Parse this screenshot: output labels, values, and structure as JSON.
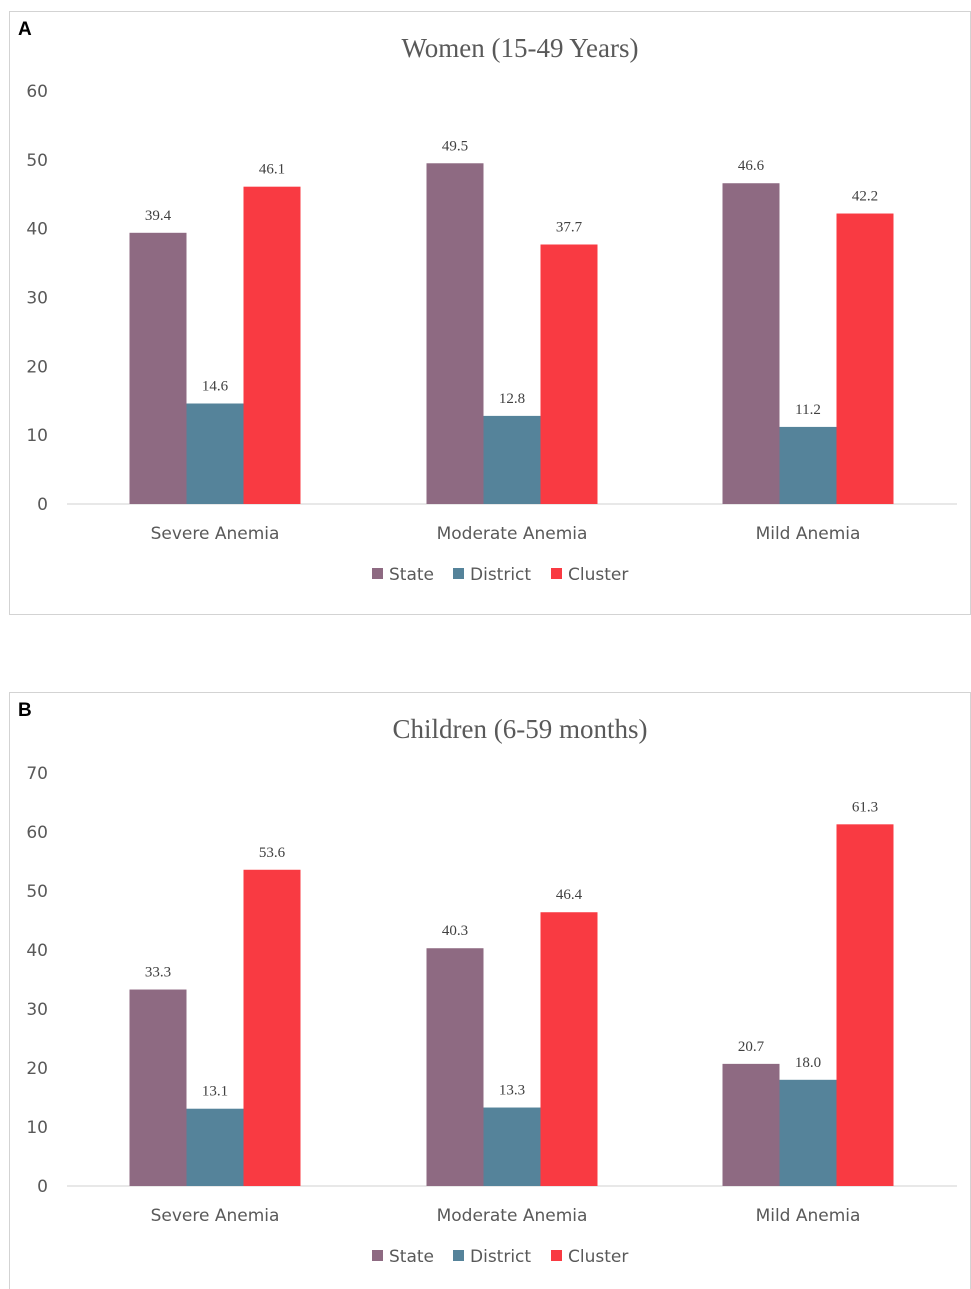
{
  "chart_data": [
    {
      "panel": "A",
      "type": "bar",
      "title": "Women (15-49 Years)",
      "categories": [
        "Severe Anemia",
        "Moderate Anemia",
        "Mild Anemia"
      ],
      "series": [
        {
          "name": "State",
          "values": [
            39.4,
            49.5,
            46.6
          ],
          "labels": [
            "39.4",
            "49.5",
            "46.6"
          ],
          "color": "#8e6a82"
        },
        {
          "name": "District",
          "values": [
            14.6,
            12.8,
            11.2
          ],
          "labels": [
            "14.6",
            "12.8",
            "11.2"
          ],
          "color": "#55839a"
        },
        {
          "name": "Cluster",
          "values": [
            46.1,
            37.7,
            42.2
          ],
          "labels": [
            "46.1",
            "37.7",
            "42.2"
          ],
          "color": "#f93a42"
        }
      ],
      "ylim": [
        0,
        60
      ],
      "yticks": [
        "0",
        "10",
        "20",
        "30",
        "40",
        "50",
        "60"
      ],
      "grid": false,
      "legend": "bottom"
    },
    {
      "panel": "B",
      "type": "bar",
      "title": "Children (6-59 months)",
      "categories": [
        "Severe Anemia",
        "Moderate Anemia",
        "Mild Anemia"
      ],
      "series": [
        {
          "name": "State",
          "values": [
            33.3,
            40.3,
            20.7
          ],
          "labels": [
            "33.3",
            "40.3",
            "20.7"
          ],
          "color": "#8e6a82"
        },
        {
          "name": "District",
          "values": [
            13.1,
            13.3,
            18.0
          ],
          "labels": [
            "13.1",
            "13.3",
            "18.0"
          ],
          "color": "#55839a"
        },
        {
          "name": "Cluster",
          "values": [
            53.6,
            46.4,
            61.3
          ],
          "labels": [
            "53.6",
            "46.4",
            "61.3"
          ],
          "color": "#f93a42"
        }
      ],
      "ylim": [
        0,
        70
      ],
      "yticks": [
        "0",
        "10",
        "20",
        "30",
        "40",
        "50",
        "60",
        "70"
      ],
      "grid": false,
      "legend": "bottom"
    }
  ]
}
